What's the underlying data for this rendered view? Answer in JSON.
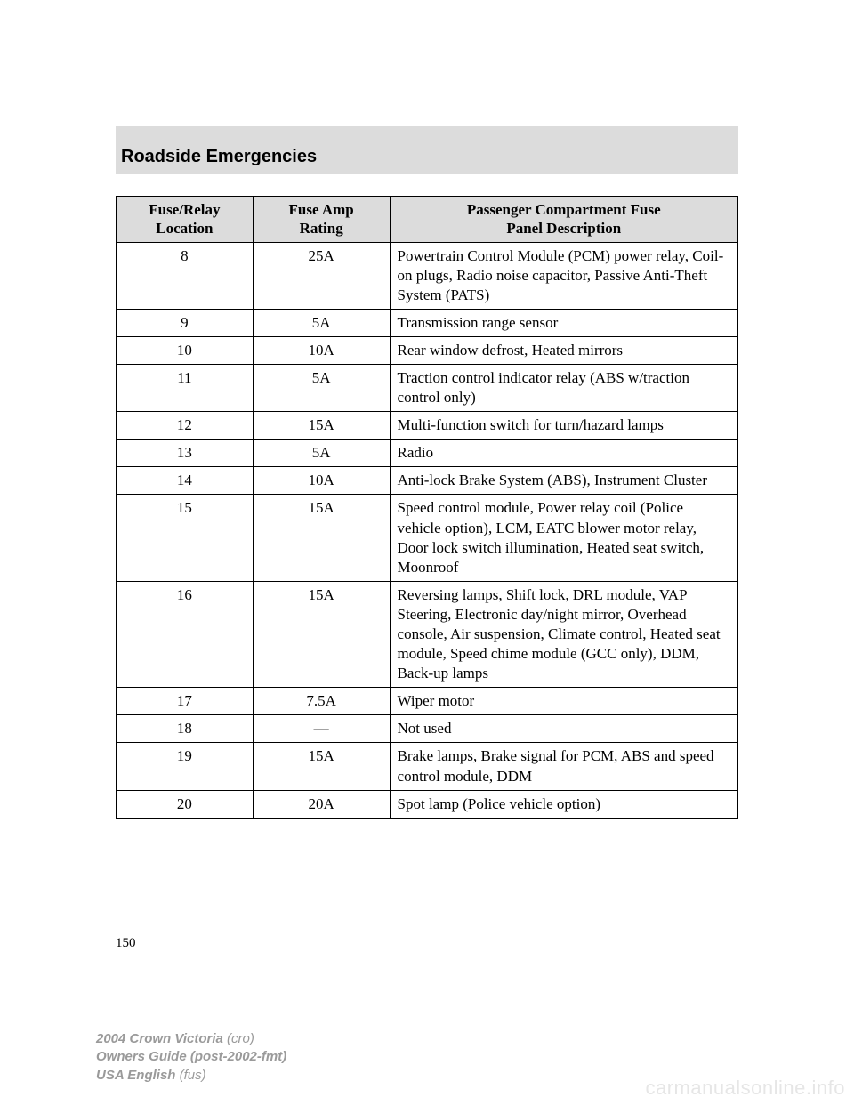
{
  "header": {
    "title": "Roadside Emergencies"
  },
  "table": {
    "columns": [
      {
        "label_line1": "Fuse/Relay",
        "label_line2": "Location"
      },
      {
        "label_line1": "Fuse Amp",
        "label_line2": "Rating"
      },
      {
        "label_line1": "Passenger Compartment Fuse",
        "label_line2": "Panel Description"
      }
    ],
    "rows": [
      {
        "loc": "8",
        "amp": "25A",
        "desc": "Powertrain Control Module (PCM) power relay, Coil-on plugs, Radio noise capacitor, Passive Anti-Theft System (PATS)"
      },
      {
        "loc": "9",
        "amp": "5A",
        "desc": "Transmission range sensor"
      },
      {
        "loc": "10",
        "amp": "10A",
        "desc": "Rear window defrost, Heated mirrors"
      },
      {
        "loc": "11",
        "amp": "5A",
        "desc": "Traction control indicator relay (ABS w/traction control only)"
      },
      {
        "loc": "12",
        "amp": "15A",
        "desc": "Multi-function switch for turn/hazard lamps"
      },
      {
        "loc": "13",
        "amp": "5A",
        "desc": "Radio"
      },
      {
        "loc": "14",
        "amp": "10A",
        "desc": "Anti-lock Brake System (ABS), Instrument Cluster"
      },
      {
        "loc": "15",
        "amp": "15A",
        "desc": "Speed control module, Power relay coil (Police vehicle option), LCM, EATC blower motor relay, Door lock switch illumination, Heated seat switch, Moonroof"
      },
      {
        "loc": "16",
        "amp": "15A",
        "desc": "Reversing lamps, Shift lock, DRL module, VAP Steering, Electronic day/night mirror, Overhead console, Air suspension, Climate control, Heated seat module, Speed chime module (GCC only), DDM, Back-up lamps"
      },
      {
        "loc": "17",
        "amp": "7.5A",
        "desc": "Wiper motor"
      },
      {
        "loc": "18",
        "amp": "—",
        "desc": "Not used"
      },
      {
        "loc": "19",
        "amp": "15A",
        "desc": "Brake lamps, Brake signal for PCM, ABS and speed control module, DDM"
      },
      {
        "loc": "20",
        "amp": "20A",
        "desc": "Spot lamp (Police vehicle option)"
      }
    ],
    "col_widths": [
      "22%",
      "22%",
      "56%"
    ],
    "header_bg": "#dcdcdc",
    "border_color": "#000000",
    "font_size_pt": 13
  },
  "page_number": "150",
  "footer": {
    "line1_bold": "2004 Crown Victoria",
    "line1_rest": " (cro)",
    "line2_bold": "Owners Guide (post-2002-fmt)",
    "line3_bold": "USA English",
    "line3_rest": " (fus)"
  },
  "watermark": "carmanualsonline.info",
  "colors": {
    "page_bg": "#ffffff",
    "band_bg": "#dcdcdc",
    "text": "#000000",
    "footer_text": "#9a9a9a",
    "watermark_text": "#e6e6e6"
  }
}
